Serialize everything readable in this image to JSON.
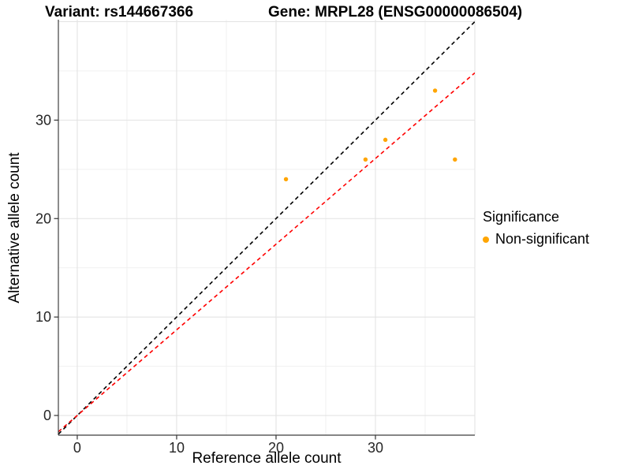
{
  "titles": {
    "variant": "Variant: rs144667366",
    "gene": "Gene: MRPL28 (ENSG00000086504)"
  },
  "chart_data": {
    "type": "scatter",
    "xlabel": "Reference allele count",
    "ylabel": "Alternative allele count",
    "xlim": [
      -1.9,
      40.0
    ],
    "ylim": [
      -2.0,
      40.2
    ],
    "x_ticks": [
      0,
      10,
      20,
      30
    ],
    "y_ticks": [
      0,
      10,
      20,
      30
    ],
    "grid_major_x": [
      0,
      10,
      20,
      30,
      40
    ],
    "grid_major_y": [
      0,
      10,
      20,
      30,
      40
    ],
    "grid_minor_x": [
      5,
      15,
      25,
      35
    ],
    "grid_minor_y": [
      5,
      15,
      25,
      35
    ],
    "series": [
      {
        "name": "Non-significant",
        "color": "#FFA500",
        "points": [
          [
            21,
            24
          ],
          [
            29,
            26
          ],
          [
            31,
            28
          ],
          [
            36,
            33
          ],
          [
            38,
            26
          ]
        ]
      }
    ],
    "reference_lines": [
      {
        "name": "identity",
        "slope": 1.0,
        "intercept": 0,
        "color": "#000000",
        "style": "dashed"
      },
      {
        "name": "expected-ratio",
        "slope": 0.87,
        "intercept": 0,
        "color": "#FF0000",
        "style": "dashed"
      }
    ],
    "legend": {
      "title": "Significance",
      "position": "right",
      "items": [
        {
          "label": "Non-significant",
          "color": "#FFA500"
        }
      ]
    },
    "colors": {
      "grid_major": "#E3E3E3",
      "grid_minor": "#EFEFEF",
      "axis_line": "#3F3F3F",
      "tick": "#333333",
      "tick_label": "#262626"
    }
  }
}
